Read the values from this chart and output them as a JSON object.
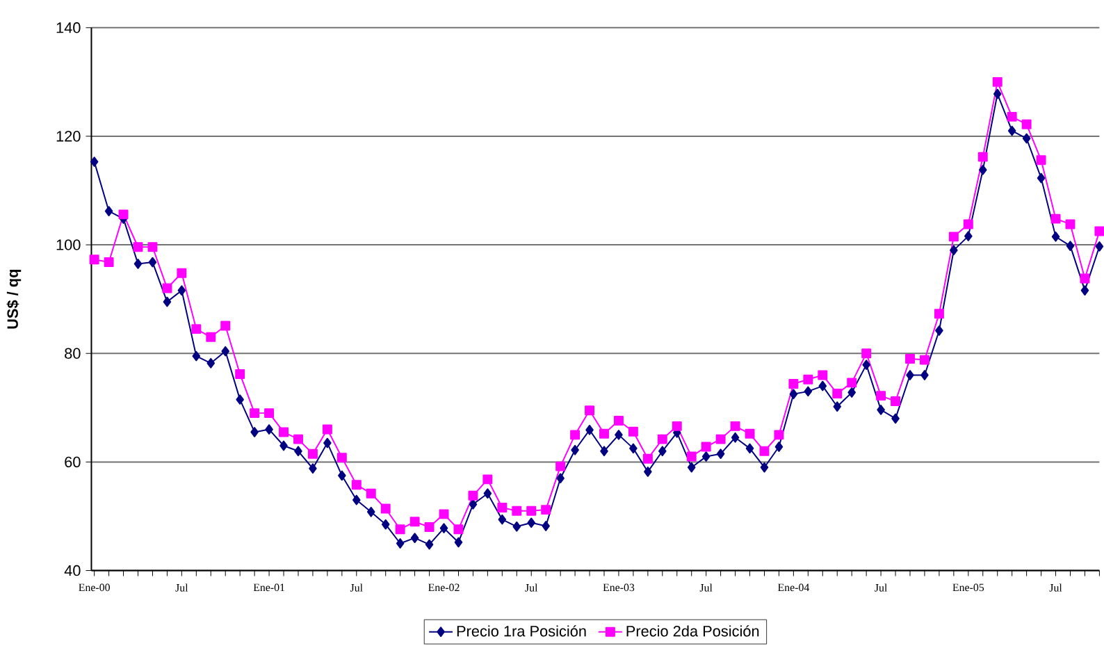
{
  "chart_data": {
    "type": "line",
    "ylabel": "US$ / qq",
    "categories": [
      "Ene-00",
      null,
      null,
      null,
      null,
      null,
      "Jul",
      null,
      null,
      null,
      null,
      null,
      "Ene-01",
      null,
      null,
      null,
      null,
      null,
      "Jul",
      null,
      null,
      null,
      null,
      null,
      "Ene-02",
      null,
      null,
      null,
      null,
      null,
      "Jul",
      null,
      null,
      null,
      null,
      null,
      "Ene-03",
      null,
      null,
      null,
      null,
      null,
      "Jul",
      null,
      null,
      null,
      null,
      null,
      "Ene-04",
      null,
      null,
      null,
      null,
      null,
      "Jul",
      null,
      null,
      null,
      null,
      null,
      "Ene-05",
      null,
      null,
      null,
      null,
      null,
      "Jul",
      null,
      null,
      null
    ],
    "series": [
      {
        "name": "Precio 1ra Posición",
        "color": "#000080",
        "marker": "diamond",
        "values": [
          115.3,
          106.2,
          104.8,
          96.5,
          96.8,
          89.5,
          91.6,
          79.5,
          78.2,
          80.4,
          71.5,
          65.5,
          66.0,
          63.0,
          62.0,
          58.8,
          63.5,
          57.5,
          53.0,
          50.8,
          48.5,
          45.0,
          46.0,
          44.8,
          47.8,
          45.2,
          52.2,
          54.2,
          49.4,
          48.1,
          48.8,
          48.2,
          57.0,
          62.2,
          65.9,
          62.0,
          65.0,
          62.5,
          58.2,
          62.0,
          65.4,
          59.0,
          61.0,
          61.5,
          64.5,
          62.5,
          59.0,
          62.8,
          72.5,
          73.0,
          74.0,
          70.2,
          72.8,
          77.9,
          69.6,
          68.0,
          76.0,
          76.0,
          84.2,
          99.0,
          101.6,
          113.8,
          127.8,
          121.0,
          119.6,
          112.3,
          101.5,
          99.8,
          91.6,
          99.7
        ]
      },
      {
        "name": "Precio 2da Posición",
        "color": "#ff00ff",
        "marker": "square",
        "values": [
          97.3,
          96.8,
          105.6,
          99.6,
          99.6,
          92.0,
          94.8,
          84.5,
          83.0,
          85.1,
          76.2,
          69.0,
          69.0,
          65.5,
          64.2,
          61.5,
          66.0,
          60.8,
          55.8,
          54.2,
          51.4,
          47.6,
          49.0,
          48.0,
          50.4,
          47.6,
          53.8,
          56.8,
          51.6,
          51.0,
          51.0,
          51.2,
          59.2,
          65.0,
          69.5,
          65.2,
          67.6,
          65.6,
          60.6,
          64.2,
          66.6,
          61.0,
          62.8,
          64.2,
          66.6,
          65.2,
          62.0,
          65.0,
          74.4,
          75.2,
          76.0,
          72.6,
          74.6,
          80.0,
          72.2,
          71.2,
          79.0,
          78.8,
          87.3,
          101.5,
          103.8,
          116.2,
          130.0,
          123.6,
          122.2,
          115.6,
          104.8,
          103.8,
          93.8,
          102.5
        ]
      }
    ],
    "ylim": [
      40,
      140
    ],
    "yticks": [
      40,
      60,
      80,
      100,
      120,
      140
    ],
    "grid": "y",
    "legend": "bottom",
    "line_style": "solid"
  }
}
